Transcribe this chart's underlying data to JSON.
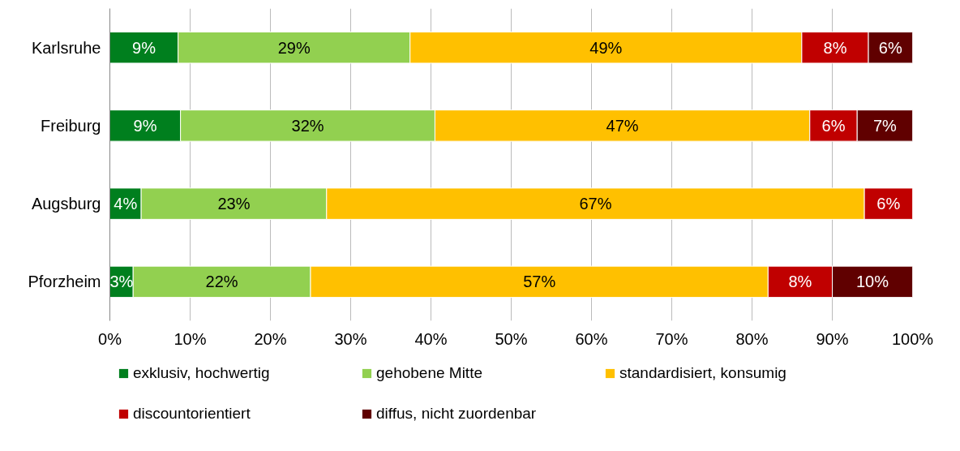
{
  "chart_data": {
    "type": "bar",
    "orientation": "horizontal",
    "stacked": true,
    "categories": [
      "Karlsruhe",
      "Freiburg",
      "Augsburg",
      "Pforzheim"
    ],
    "series": [
      {
        "name": "exklusiv, hochwertig",
        "color": "#007f1e",
        "values": [
          8.5,
          8.8,
          3.9,
          2.9
        ],
        "value_labels": [
          "9%",
          "9%",
          "4%",
          "3%"
        ]
      },
      {
        "name": "gehobene Mitte",
        "color": "#92d050",
        "values": [
          28.9,
          31.7,
          23.1,
          22.1
        ],
        "value_labels": [
          "29%",
          "32%",
          "23%",
          "22%"
        ]
      },
      {
        "name": "standardisiert, konsumig",
        "color": "#ffc000",
        "values": [
          48.8,
          46.7,
          67.0,
          57.0
        ],
        "value_labels": [
          "49%",
          "47%",
          "67%",
          "57%"
        ]
      },
      {
        "name": "discountorientiert",
        "color": "#c00000",
        "values": [
          8.3,
          5.9,
          6.0,
          8.0
        ],
        "value_labels": [
          "8%",
          "6%",
          "6%",
          "8%"
        ]
      },
      {
        "name": "diffus, nicht zuordenbar",
        "color": "#600000",
        "values": [
          5.5,
          6.9,
          null,
          10.0
        ],
        "value_labels": [
          "6%",
          "7%",
          null,
          "10%"
        ]
      }
    ],
    "xlim": [
      0,
      100
    ],
    "xticks": [
      {
        "value": 0,
        "label": "0%"
      },
      {
        "value": 10,
        "label": "10%"
      },
      {
        "value": 20,
        "label": "20%"
      },
      {
        "value": 30,
        "label": "30%"
      },
      {
        "value": 40,
        "label": "40%"
      },
      {
        "value": 50,
        "label": "50%"
      },
      {
        "value": 60,
        "label": "60%"
      },
      {
        "value": 70,
        "label": "70%"
      },
      {
        "value": 80,
        "label": "80%"
      },
      {
        "value": 90,
        "label": "90%"
      },
      {
        "value": 100,
        "label": "100%"
      }
    ],
    "grid": "x",
    "legend": "bottom"
  }
}
